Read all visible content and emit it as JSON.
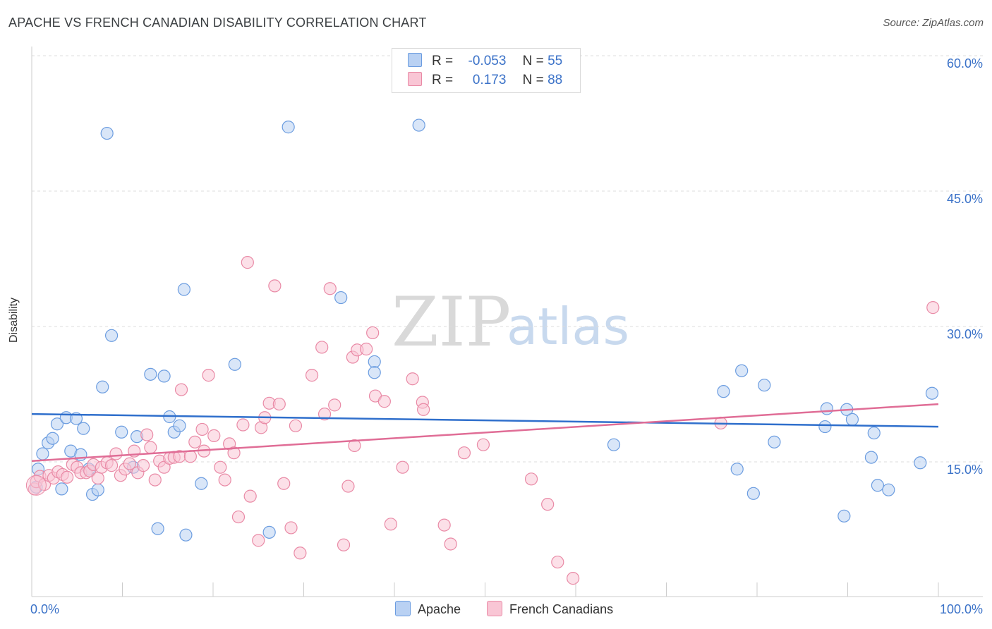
{
  "title": "APACHE VS FRENCH CANADIAN DISABILITY CORRELATION CHART",
  "source": "Source: ZipAtlas.com",
  "watermark": {
    "zip": "ZIP",
    "atlas": "atlas"
  },
  "legend_top": {
    "rows": [
      {
        "r_label": "R =",
        "r_value": "-0.053",
        "n_label": "N =",
        "n_value": "55",
        "color": "#b9d1f3",
        "border": "#6c9de0"
      },
      {
        "r_label": "R =",
        "r_value": "0.173",
        "n_label": "N =",
        "n_value": "88",
        "color": "#f9c6d5",
        "border": "#e98aa6"
      }
    ]
  },
  "legend_bottom": {
    "apache": {
      "label": "Apache",
      "color": "#b9d1f3",
      "border": "#6c9de0"
    },
    "french": {
      "label": "French Canadians",
      "color": "#f9c6d5",
      "border": "#e98aa6"
    }
  },
  "chart_data": {
    "type": "scatter",
    "ylabel": "Disability",
    "xlim": [
      0,
      100
    ],
    "ylim": [
      0,
      60
    ],
    "x_tick_labels": [
      "0.0%",
      "100.0%"
    ],
    "y_ticks": [
      15,
      30,
      45,
      60
    ],
    "y_tick_labels": [
      "15.0%",
      "30.0%",
      "45.0%",
      "60.0%"
    ],
    "grid": "dashed horizontal",
    "legend": "top-center",
    "series": [
      {
        "name": "Apache",
        "color": "#6c9de0",
        "fill": "#b9d1f3",
        "trend": {
          "x": [
            0,
            100
          ],
          "y": [
            20.3,
            18.9
          ],
          "color": "#2f6fcc"
        },
        "points": [
          [
            0.5,
            12.2
          ],
          [
            0.7,
            14.2
          ],
          [
            1.2,
            15.9
          ],
          [
            1.8,
            17.1
          ],
          [
            2.3,
            17.6
          ],
          [
            2.8,
            19.2
          ],
          [
            3.3,
            12.0
          ],
          [
            3.8,
            19.9
          ],
          [
            4.3,
            16.2
          ],
          [
            4.9,
            19.8
          ],
          [
            5.4,
            15.8
          ],
          [
            5.7,
            18.7
          ],
          [
            6.3,
            14.2
          ],
          [
            6.7,
            11.4
          ],
          [
            7.3,
            11.9
          ],
          [
            7.8,
            23.3
          ],
          [
            8.3,
            51.4
          ],
          [
            8.8,
            29.0
          ],
          [
            9.9,
            18.3
          ],
          [
            11.2,
            14.4
          ],
          [
            11.6,
            17.8
          ],
          [
            13.1,
            24.7
          ],
          [
            13.9,
            7.6
          ],
          [
            14.6,
            24.5
          ],
          [
            15.2,
            20.0
          ],
          [
            15.7,
            18.3
          ],
          [
            16.3,
            19.0
          ],
          [
            16.8,
            34.1
          ],
          [
            17.0,
            6.9
          ],
          [
            18.7,
            12.6
          ],
          [
            22.4,
            25.8
          ],
          [
            26.2,
            7.2
          ],
          [
            28.3,
            52.1
          ],
          [
            34.1,
            33.2
          ],
          [
            37.8,
            26.1
          ],
          [
            37.8,
            24.9
          ],
          [
            42.7,
            52.3
          ],
          [
            64.2,
            16.9
          ],
          [
            76.3,
            22.8
          ],
          [
            77.8,
            14.2
          ],
          [
            78.3,
            25.1
          ],
          [
            79.6,
            11.5
          ],
          [
            80.8,
            23.5
          ],
          [
            81.9,
            17.2
          ],
          [
            87.7,
            20.9
          ],
          [
            87.5,
            18.9
          ],
          [
            89.6,
            9.0
          ],
          [
            89.9,
            20.8
          ],
          [
            90.5,
            19.7
          ],
          [
            92.6,
            15.5
          ],
          [
            92.9,
            18.2
          ],
          [
            93.3,
            12.4
          ],
          [
            94.5,
            11.9
          ],
          [
            98.0,
            14.9
          ],
          [
            99.3,
            22.6
          ]
        ]
      },
      {
        "name": "French Canadians",
        "color": "#e98aa6",
        "fill": "#f9c6d5",
        "trend": {
          "x": [
            0,
            100
          ],
          "y": [
            15.1,
            21.4
          ],
          "color": "#e06d96"
        },
        "points": [
          [
            0.3,
            12.0
          ],
          [
            0.5,
            12.8
          ],
          [
            0.9,
            13.4
          ],
          [
            1.4,
            12.5
          ],
          [
            1.9,
            13.5
          ],
          [
            2.4,
            13.2
          ],
          [
            2.9,
            13.9
          ],
          [
            3.4,
            13.6
          ],
          [
            3.9,
            13.3
          ],
          [
            4.5,
            14.7
          ],
          [
            5.0,
            14.4
          ],
          [
            5.4,
            13.8
          ],
          [
            6.0,
            13.8
          ],
          [
            6.4,
            14.0
          ],
          [
            6.8,
            14.7
          ],
          [
            7.3,
            13.2
          ],
          [
            7.7,
            14.4
          ],
          [
            8.3,
            14.9
          ],
          [
            8.8,
            14.6
          ],
          [
            9.3,
            15.9
          ],
          [
            9.8,
            13.5
          ],
          [
            10.3,
            14.2
          ],
          [
            10.8,
            14.8
          ],
          [
            11.3,
            16.2
          ],
          [
            11.7,
            13.8
          ],
          [
            12.3,
            14.6
          ],
          [
            12.7,
            18.0
          ],
          [
            13.1,
            16.6
          ],
          [
            13.6,
            13.0
          ],
          [
            14.1,
            15.1
          ],
          [
            14.6,
            14.4
          ],
          [
            15.2,
            15.4
          ],
          [
            15.7,
            15.5
          ],
          [
            16.3,
            15.6
          ],
          [
            16.5,
            23.0
          ],
          [
            17.5,
            15.6
          ],
          [
            18.0,
            17.2
          ],
          [
            18.8,
            18.6
          ],
          [
            19.0,
            16.2
          ],
          [
            19.5,
            24.6
          ],
          [
            20.1,
            17.9
          ],
          [
            20.8,
            14.4
          ],
          [
            21.3,
            13.0
          ],
          [
            21.8,
            17.0
          ],
          [
            22.3,
            16.0
          ],
          [
            22.8,
            8.9
          ],
          [
            23.3,
            19.1
          ],
          [
            23.8,
            37.1
          ],
          [
            24.1,
            11.2
          ],
          [
            25.0,
            6.3
          ],
          [
            25.3,
            18.8
          ],
          [
            25.7,
            19.9
          ],
          [
            26.2,
            21.5
          ],
          [
            26.8,
            34.5
          ],
          [
            27.3,
            21.4
          ],
          [
            27.8,
            12.6
          ],
          [
            28.6,
            7.7
          ],
          [
            29.1,
            19.0
          ],
          [
            29.6,
            4.9
          ],
          [
            30.9,
            24.6
          ],
          [
            32.0,
            27.7
          ],
          [
            32.3,
            20.3
          ],
          [
            32.9,
            34.2
          ],
          [
            33.4,
            21.3
          ],
          [
            34.4,
            5.8
          ],
          [
            34.9,
            12.3
          ],
          [
            35.4,
            26.6
          ],
          [
            35.6,
            16.8
          ],
          [
            35.9,
            27.4
          ],
          [
            36.9,
            27.5
          ],
          [
            37.6,
            29.3
          ],
          [
            37.9,
            22.3
          ],
          [
            38.9,
            21.7
          ],
          [
            39.6,
            8.1
          ],
          [
            40.9,
            14.4
          ],
          [
            42.0,
            24.2
          ],
          [
            43.1,
            21.6
          ],
          [
            43.2,
            20.8
          ],
          [
            45.5,
            8.0
          ],
          [
            46.2,
            5.9
          ],
          [
            47.7,
            16.0
          ],
          [
            49.8,
            16.9
          ],
          [
            55.1,
            13.1
          ],
          [
            56.9,
            10.3
          ],
          [
            58.0,
            3.9
          ],
          [
            59.7,
            2.1
          ],
          [
            76.0,
            19.3
          ],
          [
            99.4,
            32.1
          ]
        ]
      }
    ]
  }
}
